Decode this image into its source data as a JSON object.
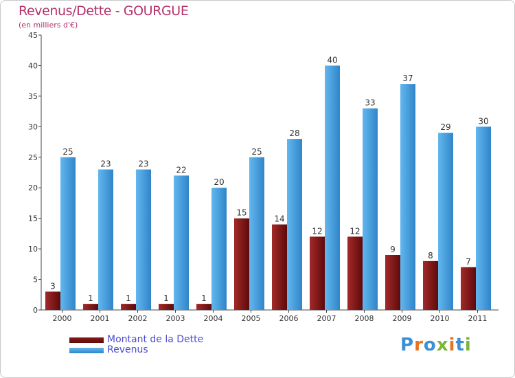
{
  "chart_data": {
    "type": "bar",
    "title": "Revenus/Dette - GOURGUE",
    "subtitle": "(en milliers d'€)",
    "categories": [
      "2000",
      "2001",
      "2002",
      "2003",
      "2004",
      "2005",
      "2006",
      "2007",
      "2008",
      "2009",
      "2010",
      "2011"
    ],
    "series": [
      {
        "name": "Montant de la Dette",
        "values": [
          3,
          1,
          1,
          1,
          1,
          15,
          14,
          12,
          12,
          9,
          8,
          7
        ]
      },
      {
        "name": "Revenus",
        "values": [
          25,
          23,
          23,
          22,
          20,
          25,
          28,
          40,
          33,
          37,
          29,
          30
        ]
      }
    ],
    "ylim": [
      0,
      45
    ],
    "yticks": [
      0,
      5,
      10,
      15,
      20,
      25,
      30,
      35,
      40,
      45
    ],
    "grid": false,
    "legend_position": "bottom-left",
    "colors": {
      "title": "#b5306a",
      "legend_text": "#4c4ccc",
      "axis": "#444444",
      "series": [
        "#8b1a1a",
        "#4aa3e0"
      ]
    }
  },
  "watermark": "Proxiti"
}
